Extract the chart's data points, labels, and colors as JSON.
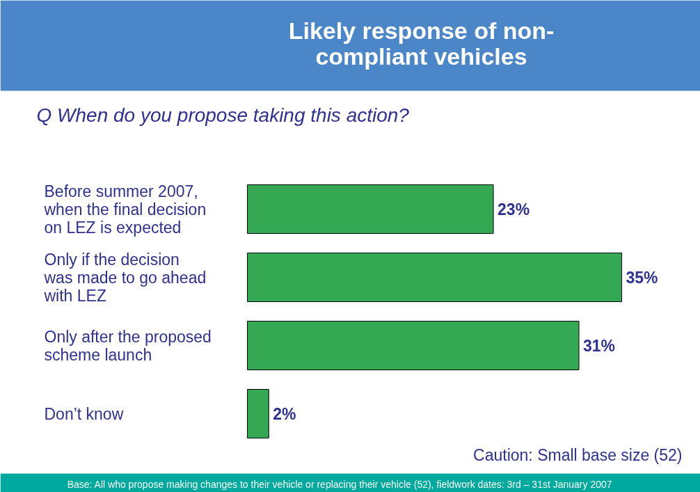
{
  "chart_data": {
    "type": "bar",
    "orientation": "horizontal",
    "title": "Likely response of non- compliant vehicles",
    "subtitle": "Q  When do you propose taking this action?",
    "categories": [
      "Before summer 2007, when the final decision on LEZ is expected",
      "Only if the decision was made to go ahead with LEZ",
      "Only after the proposed scheme launch",
      "Don’t know"
    ],
    "values": [
      23,
      35,
      31,
      2
    ],
    "color": "#34a853",
    "data_labels": true,
    "value_labels": [
      "23%",
      "35%",
      "31%",
      "2%"
    ],
    "annotations": [
      "Caution: Small base size (52)",
      "Base: All who propose making changes to their vehicle or replacing their vehicle (52), fieldwork dates: 3rd – 31st January 2007"
    ]
  }
}
